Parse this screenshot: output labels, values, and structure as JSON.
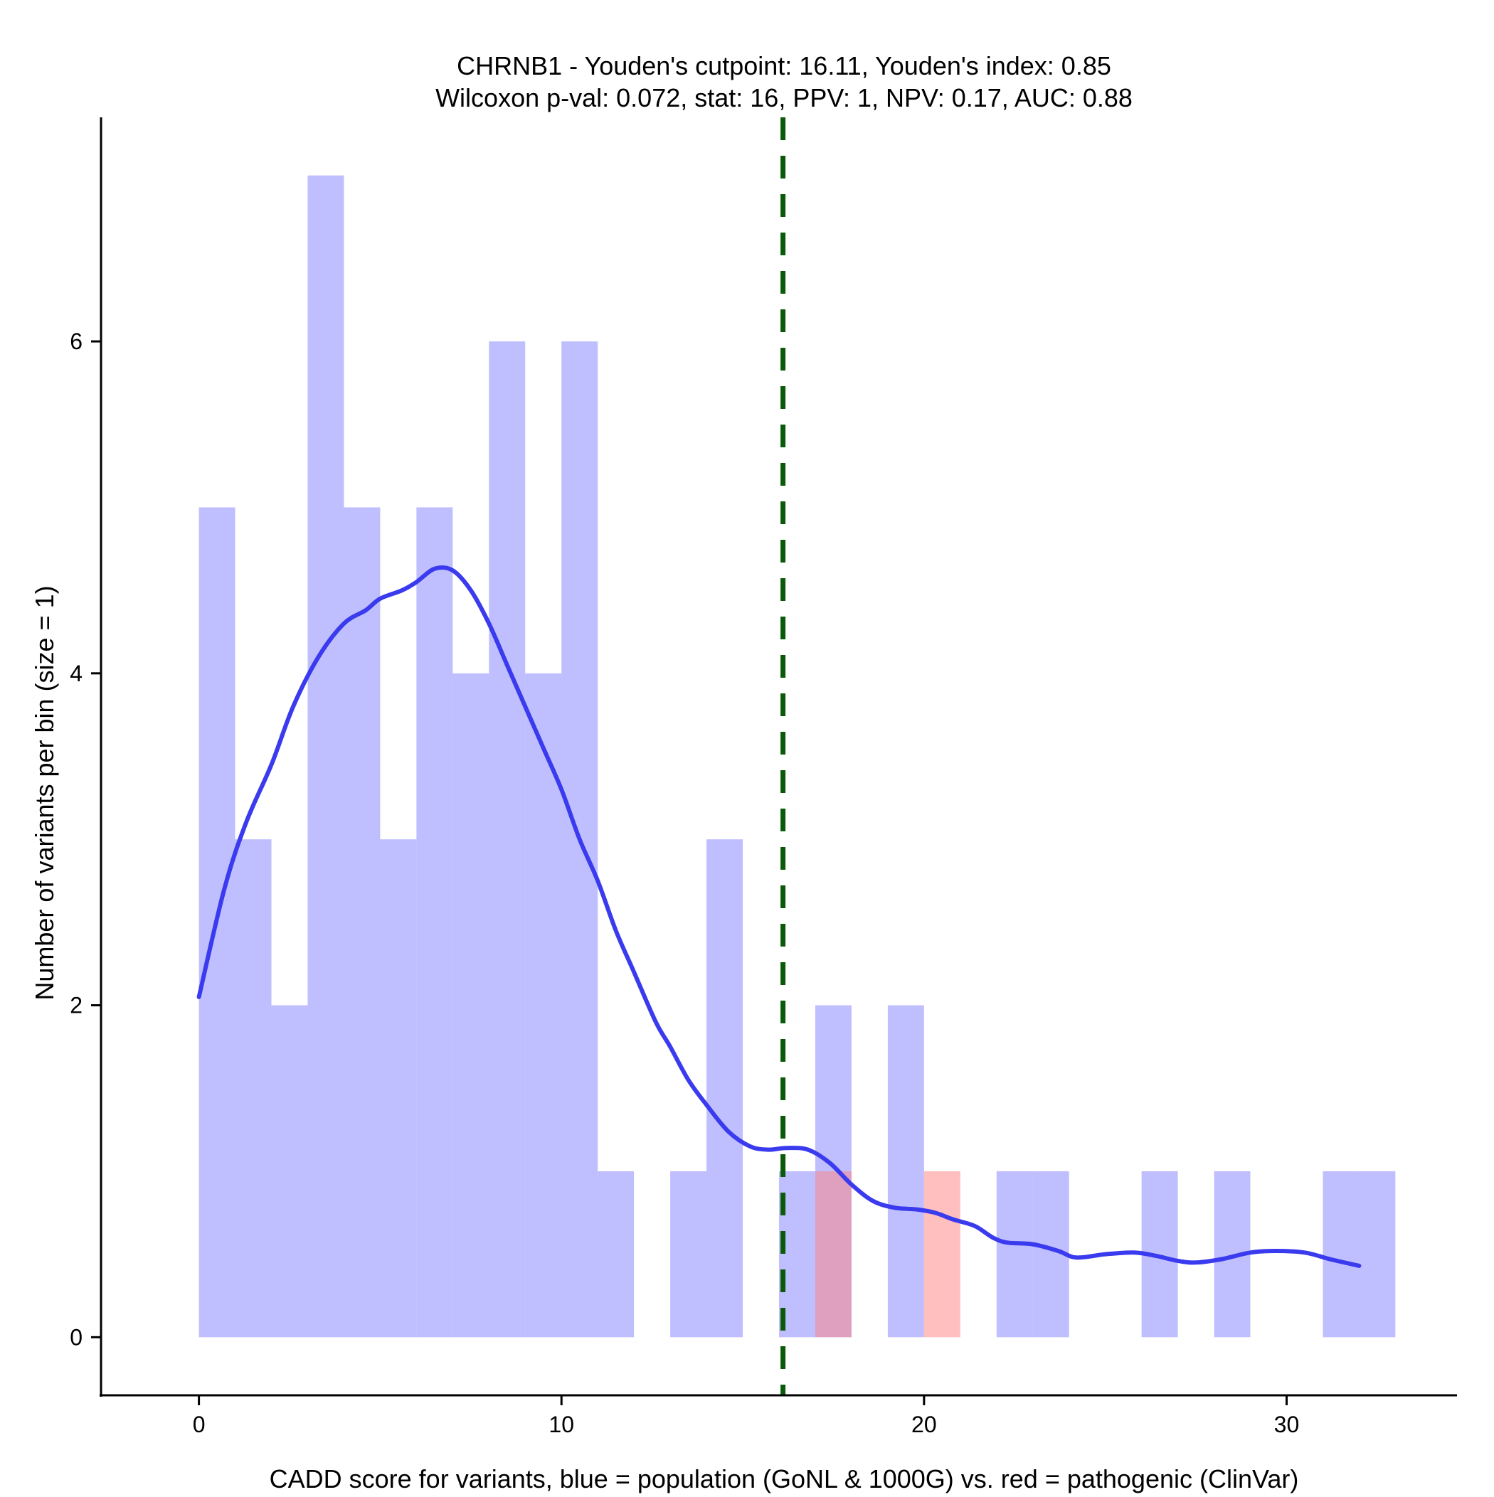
{
  "chart_data": {
    "type": "bar",
    "title_line1": "CHRNB1 - Youden's cutpoint: 16.11, Youden's index: 0.85",
    "title_line2": "Wilcoxon p-val: 0.072, stat: 16, PPV: 1, NPV: 0.17, AUC: 0.88",
    "xlabel": "CADD score for variants, blue = population (GoNL & 1000G) vs. red = pathogenic (ClinVar)",
    "ylabel": "Number of variants per bin (size = 1)",
    "xlim": [
      -2.7,
      34.7
    ],
    "ylim": [
      -0.35,
      7.35
    ],
    "x_ticks": [
      0,
      10,
      20,
      30
    ],
    "y_ticks": [
      0,
      2,
      4,
      6
    ],
    "bin_width": 1,
    "cutpoint": 16.11,
    "series": [
      {
        "name": "population",
        "color": "#8080ff",
        "opacity": 0.5,
        "bins": [
          {
            "start": 0,
            "count": 5
          },
          {
            "start": 1,
            "count": 3
          },
          {
            "start": 2,
            "count": 2
          },
          {
            "start": 3,
            "count": 7
          },
          {
            "start": 4,
            "count": 5
          },
          {
            "start": 5,
            "count": 3
          },
          {
            "start": 6,
            "count": 5
          },
          {
            "start": 7,
            "count": 4
          },
          {
            "start": 8,
            "count": 6
          },
          {
            "start": 9,
            "count": 4
          },
          {
            "start": 10,
            "count": 6
          },
          {
            "start": 11,
            "count": 1
          },
          {
            "start": 13,
            "count": 1
          },
          {
            "start": 14,
            "count": 3
          },
          {
            "start": 16,
            "count": 1
          },
          {
            "start": 17,
            "count": 2
          },
          {
            "start": 19,
            "count": 2
          },
          {
            "start": 22,
            "count": 1
          },
          {
            "start": 23,
            "count": 1
          },
          {
            "start": 26,
            "count": 1
          },
          {
            "start": 28,
            "count": 1
          },
          {
            "start": 31,
            "count": 1
          },
          {
            "start": 32,
            "count": 1
          }
        ]
      },
      {
        "name": "pathogenic",
        "color": "#ff8080",
        "opacity": 0.5,
        "bins": [
          {
            "start": 17,
            "count": 1
          },
          {
            "start": 20,
            "count": 1
          }
        ]
      }
    ],
    "density_line": {
      "color": "#3a3aee",
      "points": [
        [
          0,
          2.05
        ],
        [
          0.7,
          2.7
        ],
        [
          1.3,
          3.1
        ],
        [
          2,
          3.45
        ],
        [
          2.6,
          3.8
        ],
        [
          3.3,
          4.1
        ],
        [
          4,
          4.3
        ],
        [
          4.6,
          4.38
        ],
        [
          5,
          4.45
        ],
        [
          5.6,
          4.5
        ],
        [
          6,
          4.55
        ],
        [
          6.5,
          4.63
        ],
        [
          7,
          4.62
        ],
        [
          7.5,
          4.5
        ],
        [
          8,
          4.3
        ],
        [
          8.5,
          4.05
        ],
        [
          9,
          3.8
        ],
        [
          9.5,
          3.55
        ],
        [
          10,
          3.3
        ],
        [
          10.5,
          3.0
        ],
        [
          11,
          2.75
        ],
        [
          11.5,
          2.45
        ],
        [
          12,
          2.2
        ],
        [
          12.6,
          1.9
        ],
        [
          13,
          1.75
        ],
        [
          13.5,
          1.55
        ],
        [
          14,
          1.4
        ],
        [
          14.6,
          1.24
        ],
        [
          15.2,
          1.15
        ],
        [
          15.7,
          1.13
        ],
        [
          16.2,
          1.14
        ],
        [
          16.8,
          1.13
        ],
        [
          17.4,
          1.05
        ],
        [
          18,
          0.92
        ],
        [
          18.6,
          0.82
        ],
        [
          19.2,
          0.78
        ],
        [
          19.8,
          0.77
        ],
        [
          20.3,
          0.75
        ],
        [
          20.8,
          0.71
        ],
        [
          21.4,
          0.67
        ],
        [
          21.9,
          0.6
        ],
        [
          22.3,
          0.57
        ],
        [
          23,
          0.56
        ],
        [
          23.7,
          0.52
        ],
        [
          24.2,
          0.48
        ],
        [
          25,
          0.5
        ],
        [
          25.8,
          0.51
        ],
        [
          26.4,
          0.49
        ],
        [
          27,
          0.46
        ],
        [
          27.5,
          0.45
        ],
        [
          28.2,
          0.47
        ],
        [
          29,
          0.51
        ],
        [
          29.7,
          0.52
        ],
        [
          30.5,
          0.51
        ],
        [
          31.2,
          0.47
        ],
        [
          31.8,
          0.44
        ],
        [
          32,
          0.43
        ]
      ]
    }
  }
}
